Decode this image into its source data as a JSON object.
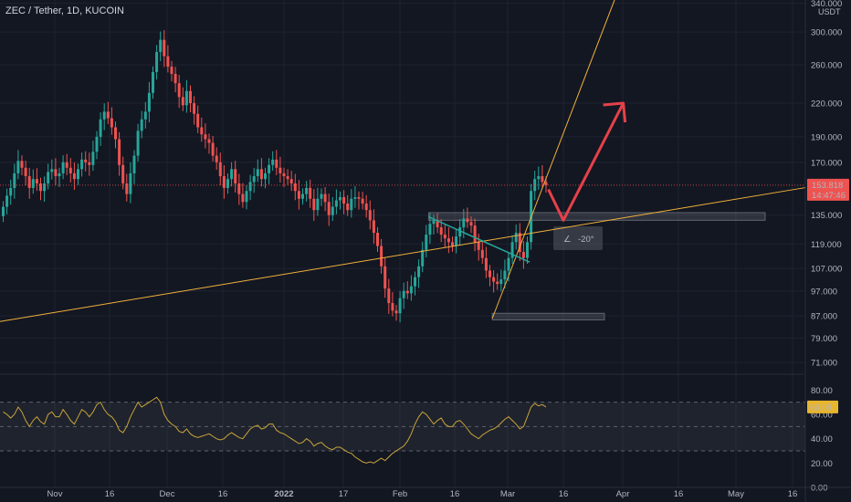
{
  "header": {
    "title": "ZEC / Tether, 1D, KUCOIN"
  },
  "colors": {
    "background": "#131722",
    "grid": "#1f2330",
    "up": "#26a69a",
    "down": "#ef5350",
    "trendline": "#f0b13c",
    "channel": "#26a69a",
    "arrow": "#e6414a",
    "rsi": "#c9a43b",
    "price_badge": "#ef5350",
    "rsi_badge": "#e8b52e"
  },
  "price_axis": {
    "unit": "USDT",
    "ticks": [
      "340.000",
      "300.000",
      "260.000",
      "220.000",
      "190.000",
      "170.000",
      "135.000",
      "119.000",
      "107.000",
      "97.000",
      "87.000",
      "79.000",
      "71.000"
    ],
    "tick_values": [
      340,
      300,
      260,
      220,
      190,
      170,
      135,
      119,
      107,
      97,
      87,
      79,
      71
    ],
    "last_price": "153.818",
    "countdown": "14:47:46"
  },
  "rsi_axis": {
    "ticks": [
      "80.00",
      "60.00",
      "40.00",
      "20.00",
      "0.00"
    ],
    "tick_values": [
      80,
      60,
      40,
      20,
      0
    ],
    "last_value": "66.08"
  },
  "time_axis": {
    "ticks": [
      "Nov",
      "16",
      "Dec",
      "16",
      "2022",
      "17",
      "Feb",
      "16",
      "Mar",
      "16",
      "Apr",
      "16",
      "May",
      "16"
    ]
  },
  "annotation": {
    "angle_label": "-20°",
    "angle_icon": "angle-icon"
  },
  "chart_data": {
    "type": "candlestick",
    "log_scale": true,
    "price_range": [
      68,
      345
    ],
    "rsi_range": [
      0,
      90
    ],
    "rsi_band": [
      30,
      70
    ],
    "close_series": [
      140,
      147,
      152,
      162,
      171,
      166,
      160,
      152,
      158,
      155,
      150,
      155,
      163,
      165,
      160,
      162,
      170,
      166,
      162,
      158,
      165,
      172,
      170,
      168,
      178,
      190,
      205,
      212,
      206,
      198,
      188,
      168,
      155,
      148,
      162,
      175,
      195,
      205,
      212,
      230,
      252,
      275,
      290,
      270,
      258,
      250,
      240,
      226,
      218,
      232,
      220,
      210,
      198,
      192,
      188,
      185,
      175,
      170,
      160,
      152,
      158,
      165,
      155,
      148,
      143,
      150,
      156,
      160,
      165,
      158,
      162,
      168,
      172,
      166,
      162,
      160,
      158,
      155,
      150,
      145,
      148,
      152,
      145,
      138,
      145,
      148,
      143,
      135,
      140,
      144,
      146,
      142,
      138,
      145,
      146,
      145,
      142,
      138,
      132,
      125,
      118,
      108,
      98,
      92,
      89,
      88,
      94,
      97,
      96,
      99,
      103,
      108,
      116,
      124,
      130,
      132,
      128,
      124,
      122,
      120,
      118,
      123,
      128,
      133,
      131,
      129,
      120,
      116,
      112,
      106,
      103,
      101,
      100,
      102,
      106,
      112,
      120,
      125,
      115,
      112,
      120,
      150,
      158,
      160,
      156,
      153.818
    ],
    "rsi_series": [
      62,
      60,
      57,
      60,
      66,
      62,
      55,
      50,
      55,
      58,
      54,
      52,
      60,
      62,
      58,
      58,
      64,
      60,
      55,
      52,
      58,
      64,
      62,
      58,
      62,
      68,
      70,
      64,
      60,
      58,
      54,
      47,
      45,
      50,
      58,
      64,
      70,
      66,
      68,
      70,
      72,
      74,
      70,
      60,
      55,
      52,
      50,
      46,
      45,
      48,
      44,
      42,
      41,
      42,
      43,
      44,
      42,
      40,
      39,
      40,
      43,
      45,
      43,
      41,
      40,
      44,
      48,
      50,
      51,
      48,
      49,
      52,
      52,
      47,
      45,
      44,
      42,
      40,
      38,
      36,
      37,
      40,
      38,
      34,
      36,
      37,
      34,
      32,
      31,
      33,
      33,
      31,
      29,
      28,
      25,
      23,
      21,
      20,
      21,
      20,
      22,
      24,
      22,
      25,
      28,
      30,
      32,
      34,
      38,
      44,
      52,
      58,
      62,
      60,
      56,
      52,
      55,
      57,
      52,
      50,
      50,
      54,
      55,
      52,
      48,
      44,
      42,
      40,
      43,
      45,
      47,
      48,
      50,
      53,
      56,
      58,
      55,
      52,
      48,
      50,
      58,
      66,
      69,
      67,
      68,
      66.08
    ],
    "support_trendline": [
      [
        0,
        85
      ],
      [
        145,
        126
      ]
    ],
    "steep_trendline": [
      [
        131,
        86
      ],
      [
        164,
        350
      ]
    ],
    "descending_channel": [
      [
        114,
        134
      ],
      [
        141,
        110
      ]
    ],
    "resistance_zone": [
      132,
      136.5
    ],
    "lower_zone": [
      85.5,
      88
    ],
    "projected_path": [
      [
        146,
        151
      ],
      [
        150,
        132
      ],
      [
        166,
        220
      ]
    ]
  }
}
